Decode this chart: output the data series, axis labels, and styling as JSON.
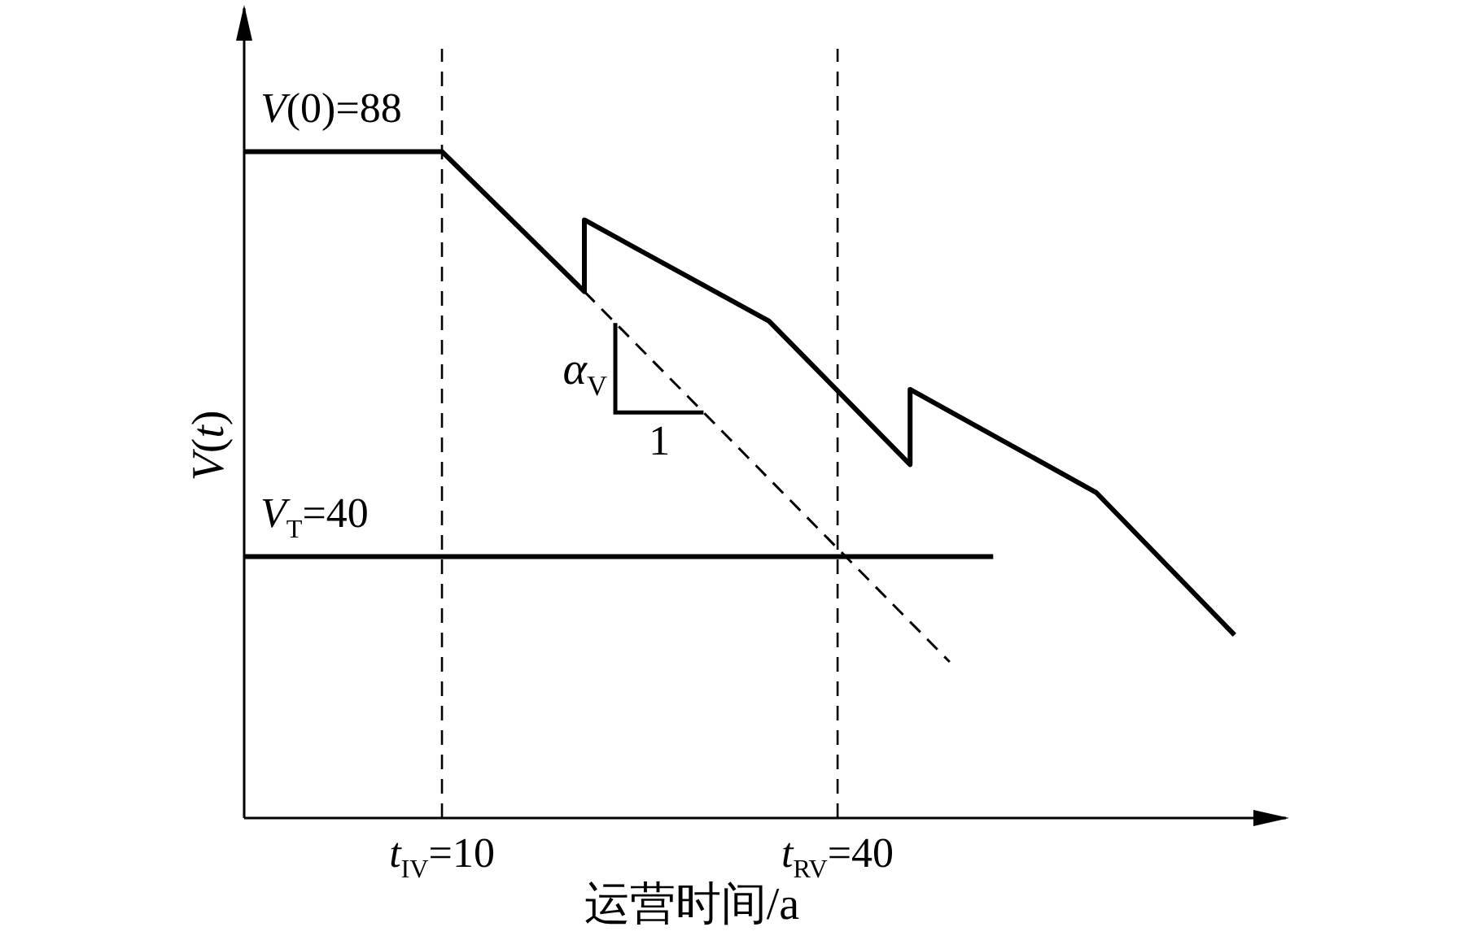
{
  "chart_data": {
    "type": "line",
    "xlabel": "运营时间/a",
    "ylabel": "*V*(*t*)",
    "xlim": [
      -5,
      74
    ],
    "ylim": [
      9,
      105
    ],
    "xticks": [
      {
        "value": 10,
        "label": "*t*$_{IV}$=10"
      },
      {
        "value": 40,
        "label": "*t*$_{RV}$=40"
      }
    ],
    "tick_labels": "x",
    "marker": "none",
    "series": [
      {
        "color": "#000000",
        "line_style": "solid",
        "x": [
          -5,
          10,
          20.8,
          20.8,
          34.8,
          45.5,
          45.5,
          59.6,
          70.1
        ],
        "values": [
          88,
          88,
          71.4,
          79.9,
          67.9,
          50.9,
          59.8,
          47.6,
          30.7
        ],
        "value_labels": [
          "*V*(0)=88",
          null,
          null,
          null,
          null,
          null,
          null,
          null,
          null
        ]
      },
      {
        "color": "#000000",
        "line_style": "dashed",
        "x": [
          20.8,
          48.5
        ],
        "values": [
          71.4,
          27.5
        ]
      },
      {
        "color": "#000000",
        "line_style": "solid",
        "x": [
          -5,
          51.8
        ],
        "values": [
          40,
          40
        ],
        "value_labels": [
          "*V*$_{T}$=40",
          null
        ]
      }
    ],
    "ref_lines": [
      {
        "axis": "x",
        "value": 10,
        "color": "#000000",
        "line_style": "dashed"
      },
      {
        "axis": "x",
        "value": 40,
        "color": "#000000",
        "line_style": "dashed"
      }
    ],
    "annotations": [
      "*α*$_{V}$",
      "1"
    ]
  }
}
